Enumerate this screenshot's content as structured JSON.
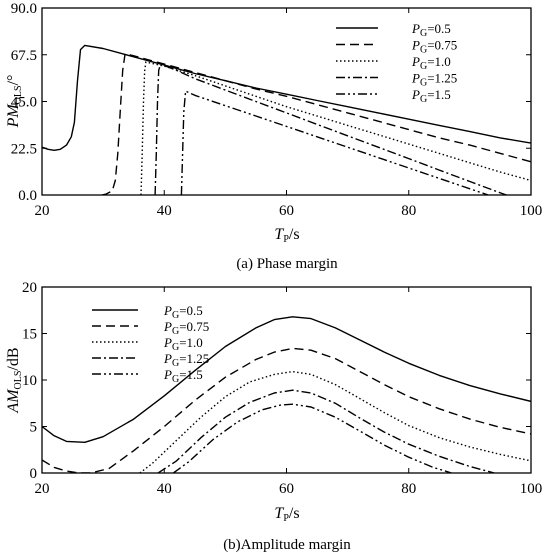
{
  "figure": {
    "caption_a": "(a) Phase margin",
    "caption_b": "(b)Amplitude margin"
  },
  "chart_data": [
    {
      "type": "line",
      "title": "",
      "caption": "(a) Phase margin",
      "xlabel": {
        "main": "T",
        "sub": "P",
        "unit": "/s"
      },
      "ylabel": {
        "main": "PM",
        "sub": "OLS",
        "unit": "/°"
      },
      "xlim": [
        20,
        100
      ],
      "ylim": [
        0,
        90
      ],
      "xticks": [
        20,
        40,
        60,
        80,
        100
      ],
      "yticks": [
        0.0,
        22.5,
        45.0,
        67.5,
        90.0
      ],
      "ytick_labels": [
        "0.0",
        "22.5",
        "45.0",
        "67.5",
        "90.0"
      ],
      "legend_position": "top-right",
      "legend_symbol": "P",
      "legend_sub": "G",
      "series": [
        {
          "name": "=0.5",
          "dash": "solid",
          "points": [
            [
              20,
              23
            ],
            [
              21,
              22
            ],
            [
              22,
              21.5
            ],
            [
              23,
              22
            ],
            [
              24,
              24
            ],
            [
              24.8,
              28
            ],
            [
              25.3,
              35
            ],
            [
              25.8,
              55
            ],
            [
              26.3,
              70
            ],
            [
              27,
              72
            ],
            [
              30,
              70.5
            ],
            [
              35,
              66.5
            ],
            [
              40,
              62.5
            ],
            [
              45,
              58.5
            ],
            [
              50,
              55
            ],
            [
              55,
              51.5
            ],
            [
              60,
              48.5
            ],
            [
              65,
              45.5
            ],
            [
              70,
              42.5
            ],
            [
              75,
              39.5
            ],
            [
              80,
              36.5
            ],
            [
              85,
              33.5
            ],
            [
              90,
              30.5
            ],
            [
              95,
              27.5
            ],
            [
              100,
              25
            ]
          ]
        },
        {
          "name": "=0.75",
          "dash": "dashed",
          "points": [
            [
              29.8,
              0
            ],
            [
              30.5,
              0.5
            ],
            [
              31.5,
              2
            ],
            [
              32,
              7
            ],
            [
              32.4,
              20
            ],
            [
              32.8,
              40
            ],
            [
              33.2,
              60
            ],
            [
              33.6,
              68
            ],
            [
              35,
              67
            ],
            [
              40,
              63
            ],
            [
              45,
              59
            ],
            [
              50,
              55
            ],
            [
              55,
              51
            ],
            [
              60,
              47.5
            ],
            [
              65,
              43.5
            ],
            [
              70,
              39.5
            ],
            [
              75,
              35.5
            ],
            [
              80,
              31.5
            ],
            [
              85,
              27.5
            ],
            [
              90,
              24
            ],
            [
              95,
              20
            ],
            [
              100,
              16
            ]
          ]
        },
        {
          "name": "=1.0",
          "dash": "dotted",
          "points": [
            [
              36.2,
              0
            ],
            [
              36.4,
              20
            ],
            [
              36.6,
              45
            ],
            [
              36.8,
              60
            ],
            [
              37,
              64
            ],
            [
              40,
              62
            ],
            [
              45,
              57.5
            ],
            [
              50,
              52.5
            ],
            [
              55,
              47.5
            ],
            [
              60,
              42.5
            ],
            [
              65,
              38
            ],
            [
              70,
              33.5
            ],
            [
              75,
              29
            ],
            [
              80,
              24.5
            ],
            [
              85,
              20
            ],
            [
              90,
              15.5
            ],
            [
              95,
              11
            ],
            [
              100,
              7
            ]
          ]
        },
        {
          "name": "=1.25",
          "dash": "dashdot",
          "points": [
            [
              38.5,
              0
            ],
            [
              38.7,
              20
            ],
            [
              38.9,
              45
            ],
            [
              39.1,
              60
            ],
            [
              39.4,
              63
            ],
            [
              42,
              60
            ],
            [
              45,
              56
            ],
            [
              50,
              50.5
            ],
            [
              55,
              45
            ],
            [
              60,
              39.5
            ],
            [
              65,
              34
            ],
            [
              70,
              28.5
            ],
            [
              75,
              23
            ],
            [
              80,
              17.5
            ],
            [
              85,
              12
            ],
            [
              90,
              6.5
            ],
            [
              95,
              1
            ],
            [
              96,
              0
            ]
          ]
        },
        {
          "name": "=1.5",
          "dash": "dashdotdot",
          "points": [
            [
              42.8,
              0
            ],
            [
              43,
              20
            ],
            [
              43.2,
              40
            ],
            [
              43.5,
              50
            ],
            [
              45,
              48
            ],
            [
              50,
              43
            ],
            [
              55,
              38
            ],
            [
              60,
              33
            ],
            [
              65,
              28
            ],
            [
              70,
              23
            ],
            [
              75,
              18
            ],
            [
              80,
              13
            ],
            [
              85,
              8
            ],
            [
              90,
              3
            ],
            [
              93,
              0
            ]
          ]
        }
      ]
    },
    {
      "type": "line",
      "title": "",
      "caption": "(b)Amplitude margin",
      "xlabel": {
        "main": "T",
        "sub": "P",
        "unit": "/s"
      },
      "ylabel": {
        "main": "AM",
        "sub": "OLS",
        "unit": "/dB"
      },
      "xlim": [
        20,
        100
      ],
      "ylim": [
        0,
        20
      ],
      "xticks": [
        20,
        40,
        60,
        80,
        100
      ],
      "yticks": [
        0,
        5,
        10,
        15,
        20
      ],
      "ytick_labels": [
        "0",
        "5",
        "10",
        "15",
        "20"
      ],
      "legend_position": "top-left",
      "legend_symbol": "P",
      "legend_sub": "G",
      "series": [
        {
          "name": "=0.5",
          "dash": "solid",
          "points": [
            [
              20,
              5
            ],
            [
              22,
              4
            ],
            [
              24,
              3.4
            ],
            [
              27,
              3.3
            ],
            [
              30,
              3.9
            ],
            [
              35,
              5.8
            ],
            [
              40,
              8.3
            ],
            [
              45,
              11
            ],
            [
              50,
              13.6
            ],
            [
              55,
              15.6
            ],
            [
              58,
              16.5
            ],
            [
              61,
              16.8
            ],
            [
              64,
              16.6
            ],
            [
              68,
              15.6
            ],
            [
              72,
              14.3
            ],
            [
              76,
              13
            ],
            [
              80,
              11.8
            ],
            [
              85,
              10.5
            ],
            [
              90,
              9.4
            ],
            [
              95,
              8.5
            ],
            [
              100,
              7.7
            ]
          ]
        },
        {
          "name": "=0.75",
          "dash": "dashed",
          "points": [
            [
              20,
              1.4
            ],
            [
              22,
              0.6
            ],
            [
              24,
              0.2
            ],
            [
              26,
              0
            ],
            [
              28,
              0
            ],
            [
              31,
              0.5
            ],
            [
              35,
              2.4
            ],
            [
              40,
              5
            ],
            [
              45,
              7.8
            ],
            [
              50,
              10.3
            ],
            [
              55,
              12.2
            ],
            [
              58,
              13
            ],
            [
              61,
              13.4
            ],
            [
              64,
              13.2
            ],
            [
              68,
              12.3
            ],
            [
              72,
              10.9
            ],
            [
              76,
              9.5
            ],
            [
              80,
              8.2
            ],
            [
              85,
              6.9
            ],
            [
              90,
              5.8
            ],
            [
              95,
              4.9
            ],
            [
              100,
              4.2
            ]
          ]
        },
        {
          "name": "=1.0",
          "dash": "dotted",
          "points": [
            [
              36,
              0
            ],
            [
              38,
              1
            ],
            [
              42,
              3.5
            ],
            [
              46,
              6
            ],
            [
              50,
              8.2
            ],
            [
              54,
              9.8
            ],
            [
              58,
              10.6
            ],
            [
              61,
              10.9
            ],
            [
              64,
              10.6
            ],
            [
              68,
              9.5
            ],
            [
              72,
              8
            ],
            [
              76,
              6.5
            ],
            [
              80,
              5.1
            ],
            [
              85,
              3.8
            ],
            [
              90,
              2.8
            ],
            [
              95,
              2
            ],
            [
              100,
              1.3
            ]
          ]
        },
        {
          "name": "=1.25",
          "dash": "dashdot",
          "points": [
            [
              39,
              0
            ],
            [
              42,
              1.3
            ],
            [
              46,
              3.8
            ],
            [
              50,
              6
            ],
            [
              54,
              7.6
            ],
            [
              58,
              8.6
            ],
            [
              61,
              8.9
            ],
            [
              64,
              8.6
            ],
            [
              68,
              7.5
            ],
            [
              72,
              5.9
            ],
            [
              76,
              4.4
            ],
            [
              80,
              3.1
            ],
            [
              85,
              1.8
            ],
            [
              90,
              0.7
            ],
            [
              94,
              0
            ]
          ]
        },
        {
          "name": "=1.5",
          "dash": "dashdotdot",
          "points": [
            [
              41.5,
              0
            ],
            [
              44,
              1.2
            ],
            [
              48,
              3.6
            ],
            [
              52,
              5.5
            ],
            [
              56,
              6.8
            ],
            [
              59,
              7.3
            ],
            [
              61,
              7.4
            ],
            [
              64,
              7.1
            ],
            [
              68,
              6
            ],
            [
              72,
              4.5
            ],
            [
              76,
              3
            ],
            [
              80,
              1.7
            ],
            [
              84,
              0.6
            ],
            [
              87,
              0
            ]
          ]
        }
      ]
    }
  ]
}
